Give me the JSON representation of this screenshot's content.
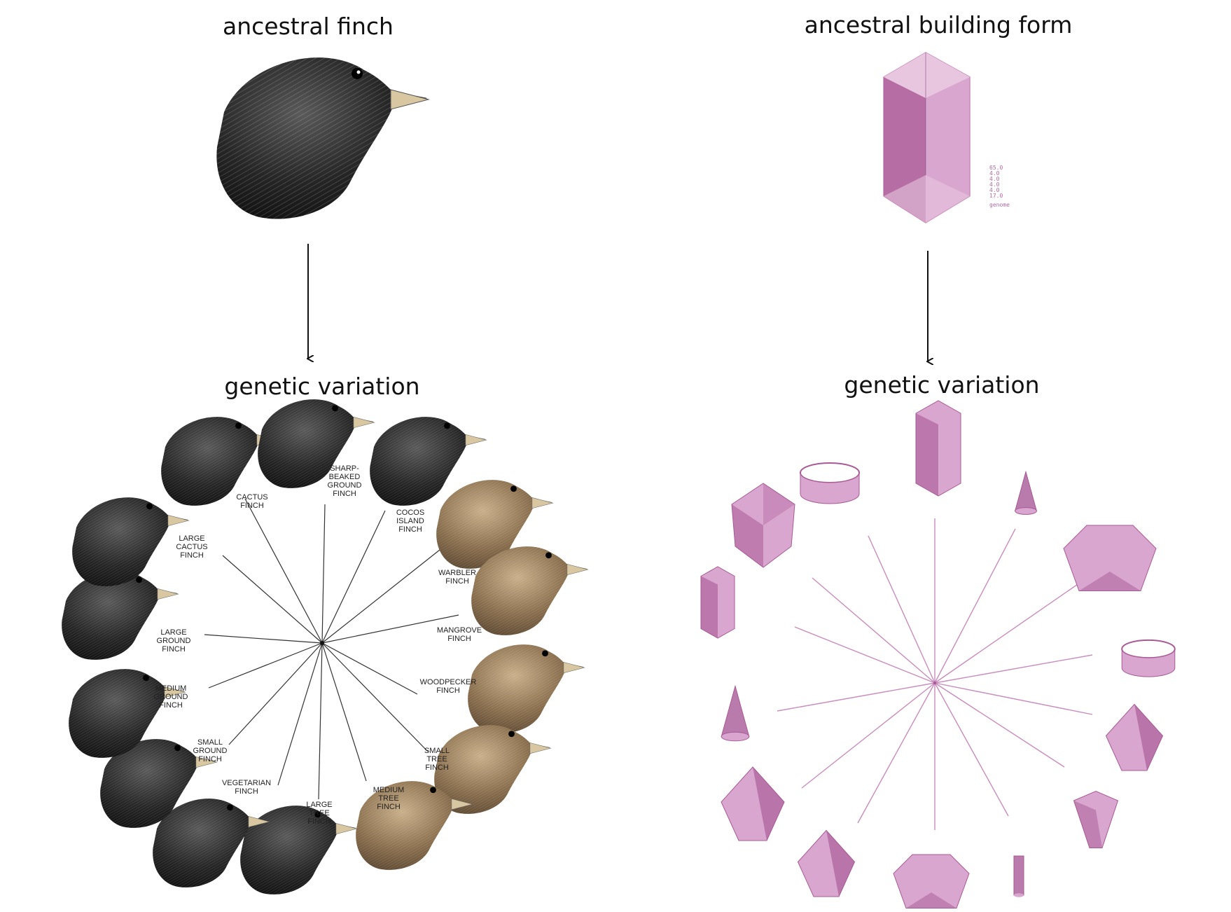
{
  "left": {
    "top_title": "ancestral finch",
    "bottom_title": "genetic variation",
    "finches": [
      {
        "id": "cactus",
        "lines": [
          "CACTUS",
          "FINCH"
        ]
      },
      {
        "id": "sharp-beaked-ground",
        "lines": [
          "SHARP-",
          "BEAKED",
          "GROUND",
          "FINCH"
        ]
      },
      {
        "id": "cocos-island",
        "lines": [
          "COCOS",
          "ISLAND",
          "FINCH"
        ]
      },
      {
        "id": "warbler",
        "lines": [
          "WARBLER",
          "FINCH"
        ]
      },
      {
        "id": "mangrove",
        "lines": [
          "MANGROVE",
          "FINCH"
        ]
      },
      {
        "id": "woodpecker",
        "lines": [
          "WOODPECKER",
          "FINCH"
        ]
      },
      {
        "id": "small-tree",
        "lines": [
          "SMALL",
          "TREE",
          "FINCH"
        ]
      },
      {
        "id": "medium-tree",
        "lines": [
          "MEDIUM",
          "TREE",
          "FINCH"
        ]
      },
      {
        "id": "large-tree",
        "lines": [
          "LARGE",
          "TREE",
          "FINCH"
        ]
      },
      {
        "id": "vegetarian",
        "lines": [
          "VEGETARIAN",
          "FINCH"
        ]
      },
      {
        "id": "small-ground",
        "lines": [
          "SMALL",
          "GROUND",
          "FINCH"
        ]
      },
      {
        "id": "medium-ground",
        "lines": [
          "MEDIUM",
          "GROUND",
          "FINCH"
        ]
      },
      {
        "id": "large-ground",
        "lines": [
          "LARGE",
          "GROUND",
          "FINCH"
        ]
      },
      {
        "id": "large-cactus",
        "lines": [
          "LARGE",
          "CACTUS",
          "FINCH"
        ]
      }
    ]
  },
  "right": {
    "top_title": "ancestral building form",
    "bottom_title": "genetic variation",
    "ancestor_genome": [
      "65.0",
      "4.0",
      "4.0",
      "4.0",
      "4.0",
      "17.0",
      "genome"
    ]
  },
  "colors": {
    "finch_dark": "#2b2b2b",
    "finch_brown": "#8a6f4e",
    "beak": "#d8c7a0",
    "form_fill": "#d9a6cf",
    "form_dark": "#a85a96",
    "form_line": "#c98cbc"
  }
}
